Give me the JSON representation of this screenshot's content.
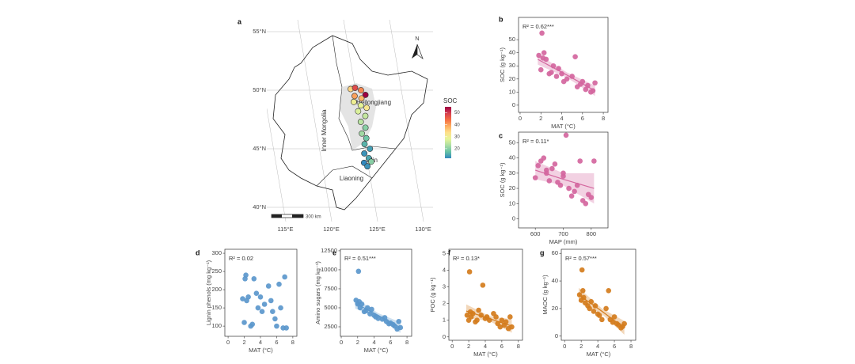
{
  "chart_data": [
    {
      "type": "map",
      "label": "a",
      "lat_ticks": [
        {
          "value": 55,
          "label": "55°N"
        },
        {
          "value": 50,
          "label": "50°N"
        },
        {
          "value": 45,
          "label": "45°N"
        },
        {
          "value": 40,
          "label": "40°N"
        }
      ],
      "lon_ticks": [
        {
          "value": 115,
          "label": "115°E"
        },
        {
          "value": 120,
          "label": "120°E"
        },
        {
          "value": 125,
          "label": "125°E"
        },
        {
          "value": 130,
          "label": "130°E"
        }
      ],
      "regions": [
        "Inner Mongolia",
        "Heilongjiang",
        "Jilin",
        "Liaoning"
      ],
      "north": "N",
      "scale_bar": "300 km",
      "legend_title": "SOC",
      "colorbar": {
        "lim": [
          12,
          55
        ],
        "ticks": [
          20,
          30,
          40,
          50
        ]
      },
      "sites": [
        {
          "lon": 124.5,
          "lat": 50.1,
          "soc": 35
        },
        {
          "lon": 125.0,
          "lat": 50.2,
          "soc": 48
        },
        {
          "lon": 125.6,
          "lat": 50.0,
          "soc": 42
        },
        {
          "lon": 126.0,
          "lat": 49.6,
          "soc": 55
        },
        {
          "lon": 124.8,
          "lat": 49.5,
          "soc": 40
        },
        {
          "lon": 125.5,
          "lat": 49.3,
          "soc": 38
        },
        {
          "lon": 124.6,
          "lat": 49.0,
          "soc": 30
        },
        {
          "lon": 125.3,
          "lat": 48.7,
          "soc": 28
        },
        {
          "lon": 125.9,
          "lat": 48.5,
          "soc": 32
        },
        {
          "lon": 124.9,
          "lat": 48.2,
          "soc": 27
        },
        {
          "lon": 125.6,
          "lat": 47.8,
          "soc": 25
        },
        {
          "lon": 125.0,
          "lat": 47.3,
          "soc": 24
        },
        {
          "lon": 125.4,
          "lat": 46.8,
          "soc": 20
        },
        {
          "lon": 124.9,
          "lat": 46.3,
          "soc": 22
        },
        {
          "lon": 125.3,
          "lat": 45.9,
          "soc": 18
        },
        {
          "lon": 125.0,
          "lat": 45.4,
          "soc": 16
        },
        {
          "lon": 125.5,
          "lat": 45.0,
          "soc": 14
        },
        {
          "lon": 124.8,
          "lat": 44.6,
          "soc": 13
        },
        {
          "lon": 125.2,
          "lat": 44.2,
          "soc": 15
        },
        {
          "lon": 124.6,
          "lat": 43.8,
          "soc": 12
        },
        {
          "lon": 124.9,
          "lat": 43.5,
          "soc": 13
        },
        {
          "lon": 125.4,
          "lat": 43.9,
          "soc": 20
        }
      ]
    },
    {
      "type": "scatter",
      "label": "b",
      "annotation": "R² = 0.62***",
      "xlabel": "MAT (°C)",
      "ylabel": "SOC (g kg⁻¹)",
      "color": "#d4669e",
      "x": [
        1.8,
        2.0,
        2.1,
        2.2,
        2.3,
        2.5,
        2.8,
        3.0,
        3.2,
        3.5,
        3.7,
        4.0,
        4.2,
        4.5,
        5.0,
        5.3,
        5.5,
        5.8,
        6.0,
        6.3,
        6.5,
        6.8,
        7.0,
        7.2
      ],
      "values": [
        38,
        27,
        55,
        36,
        40,
        35,
        24,
        25,
        30,
        22,
        28,
        24,
        18,
        20,
        22,
        37,
        14,
        16,
        18,
        12,
        15,
        10,
        11,
        17
      ],
      "xlim": [
        -0.15,
        8.45
      ],
      "ylim": [
        -5.5,
        67
      ],
      "xticks": [
        0,
        2,
        4,
        6,
        8
      ],
      "yticks": [
        0,
        10,
        20,
        30,
        40,
        50
      ],
      "trend": {
        "x": [
          1.7,
          4.5,
          7.2
        ],
        "values": [
          35,
          23,
          11
        ],
        "lower": [
          31,
          21,
          7
        ],
        "upper": [
          39,
          25,
          15
        ]
      }
    },
    {
      "type": "scatter",
      "label": "c",
      "annotation": "R² = 0.11*",
      "xlabel": "MAP (mm)",
      "ylabel": "SOC (g kg⁻¹)",
      "color": "#d4669e",
      "x": [
        600,
        610,
        620,
        630,
        640,
        650,
        660,
        670,
        680,
        690,
        700,
        710,
        720,
        730,
        740,
        750,
        760,
        770,
        780,
        790,
        800,
        810,
        700,
        640
      ],
      "values": [
        27,
        35,
        38,
        40,
        30,
        25,
        33,
        36,
        24,
        22,
        30,
        55,
        20,
        15,
        18,
        22,
        38,
        12,
        10,
        16,
        14,
        38,
        28,
        32
      ],
      "xlim": [
        540,
        860
      ],
      "ylim": [
        -6,
        57
      ],
      "xticks": [
        600,
        700,
        800
      ],
      "yticks": [
        0,
        10,
        20,
        30,
        40,
        50
      ],
      "trend": {
        "x": [
          600,
          700,
          810
        ],
        "values": [
          32,
          26,
          20
        ],
        "lower": [
          26,
          22,
          10
        ],
        "upper": [
          38,
          30,
          30
        ]
      }
    },
    {
      "type": "scatter",
      "label": "d",
      "annotation": "R² = 0.02",
      "xlabel": "MAT (°C)",
      "ylabel": "Lignin phenols (mg kg⁻¹)",
      "color": "#5b97cc",
      "x": [
        1.8,
        2.0,
        2.1,
        2.2,
        2.3,
        2.5,
        2.8,
        3.0,
        3.2,
        3.5,
        3.7,
        4.0,
        4.2,
        4.5,
        5.0,
        5.3,
        5.5,
        5.8,
        6.0,
        6.3,
        6.5,
        6.8,
        7.0,
        7.2
      ],
      "values": [
        175,
        110,
        230,
        240,
        170,
        180,
        100,
        105,
        230,
        190,
        150,
        180,
        140,
        160,
        210,
        170,
        140,
        120,
        100,
        215,
        150,
        95,
        235,
        95
      ],
      "xlim": [
        -0.4,
        8.5
      ],
      "ylim": [
        72,
        311
      ],
      "xticks": [
        0,
        2,
        4,
        6,
        8
      ],
      "yticks": [
        100,
        150,
        200,
        250,
        300
      ]
    },
    {
      "type": "scatter",
      "label": "e",
      "annotation": "R² = 0.51***",
      "xlabel": "MAT (°C)",
      "ylabel": "Amino sugars (mg kg⁻¹)",
      "color": "#5b97cc",
      "x": [
        1.8,
        2.0,
        2.1,
        2.2,
        2.3,
        2.5,
        2.8,
        3.0,
        3.2,
        3.5,
        3.7,
        4.0,
        4.2,
        4.5,
        5.0,
        5.3,
        5.5,
        5.8,
        6.0,
        6.3,
        6.5,
        6.8,
        7.0,
        7.2
      ],
      "values": [
        6000,
        5500,
        9800,
        5800,
        5000,
        5500,
        4500,
        4600,
        5000,
        4200,
        4800,
        4000,
        3800,
        3600,
        3500,
        3700,
        3200,
        2900,
        3000,
        2800,
        2600,
        2200,
        3200,
        2400
      ],
      "xlim": [
        -0.1,
        8.57
      ],
      "ylim": [
        1250,
        12700
      ],
      "xticks": [
        0,
        2,
        4,
        6,
        8
      ],
      "yticks": [
        2500,
        5000,
        7500,
        10000,
        12500
      ],
      "trend": {
        "x": [
          1.7,
          4.5,
          7.2
        ],
        "values": [
          5600,
          4000,
          2400
        ],
        "lower": [
          4900,
          3700,
          1700
        ],
        "upper": [
          6300,
          4300,
          3100
        ]
      }
    },
    {
      "type": "scatter",
      "label": "f",
      "annotation": "R² = 0.13*",
      "xlabel": "MAT (°C)",
      "ylabel": "POC (g kg⁻¹)",
      "color": "#d47c1c",
      "x": [
        1.8,
        2.0,
        2.1,
        2.2,
        2.3,
        2.5,
        2.8,
        3.0,
        3.2,
        3.5,
        3.7,
        4.0,
        4.2,
        4.5,
        5.0,
        5.3,
        5.5,
        5.8,
        6.0,
        6.3,
        6.5,
        6.8,
        7.0,
        7.2
      ],
      "values": [
        1.3,
        1.0,
        3.9,
        1.5,
        1.2,
        1.4,
        0.9,
        1.0,
        1.6,
        1.3,
        3.1,
        1.1,
        1.2,
        1.0,
        1.4,
        1.2,
        0.8,
        0.6,
        1.0,
        0.7,
        0.9,
        0.5,
        1.2,
        0.6
      ],
      "xlim": [
        -0.4,
        8.5
      ],
      "ylim": [
        -0.2,
        5.25
      ],
      "xticks": [
        0,
        2,
        4,
        6,
        8
      ],
      "yticks": [
        0,
        1,
        2,
        3,
        4,
        5
      ],
      "trend": {
        "x": [
          1.7,
          4.5,
          7.2
        ],
        "values": [
          1.55,
          1.1,
          0.65
        ],
        "lower": [
          1.15,
          0.95,
          0.25
        ],
        "upper": [
          1.95,
          1.25,
          1.05
        ]
      }
    },
    {
      "type": "scatter",
      "label": "g",
      "annotation": "R² = 0.57***",
      "xlabel": "MAT (°C)",
      "ylabel": "MAOC (g kg⁻¹)",
      "color": "#d47c1c",
      "x": [
        1.8,
        2.0,
        2.1,
        2.2,
        2.3,
        2.5,
        2.8,
        3.0,
        3.2,
        3.5,
        3.7,
        4.0,
        4.2,
        4.5,
        5.0,
        5.3,
        5.5,
        5.8,
        6.0,
        6.3,
        6.5,
        6.8,
        7.0,
        7.2
      ],
      "values": [
        30,
        26,
        48,
        33,
        28,
        24,
        22,
        20,
        25,
        18,
        22,
        16,
        15,
        12,
        20,
        33,
        12,
        10,
        14,
        9,
        8,
        6,
        7,
        9
      ],
      "xlim": [
        -0.4,
        8.57
      ],
      "ylim": [
        -3,
        63
      ],
      "xticks": [
        0,
        2,
        4,
        6,
        8
      ],
      "yticks": [
        0,
        20,
        40,
        60
      ],
      "trend": {
        "x": [
          1.7,
          4.5,
          7.2
        ],
        "values": [
          30,
          18,
          6
        ],
        "lower": [
          25,
          16,
          1
        ],
        "upper": [
          35,
          20,
          11
        ]
      }
    }
  ]
}
